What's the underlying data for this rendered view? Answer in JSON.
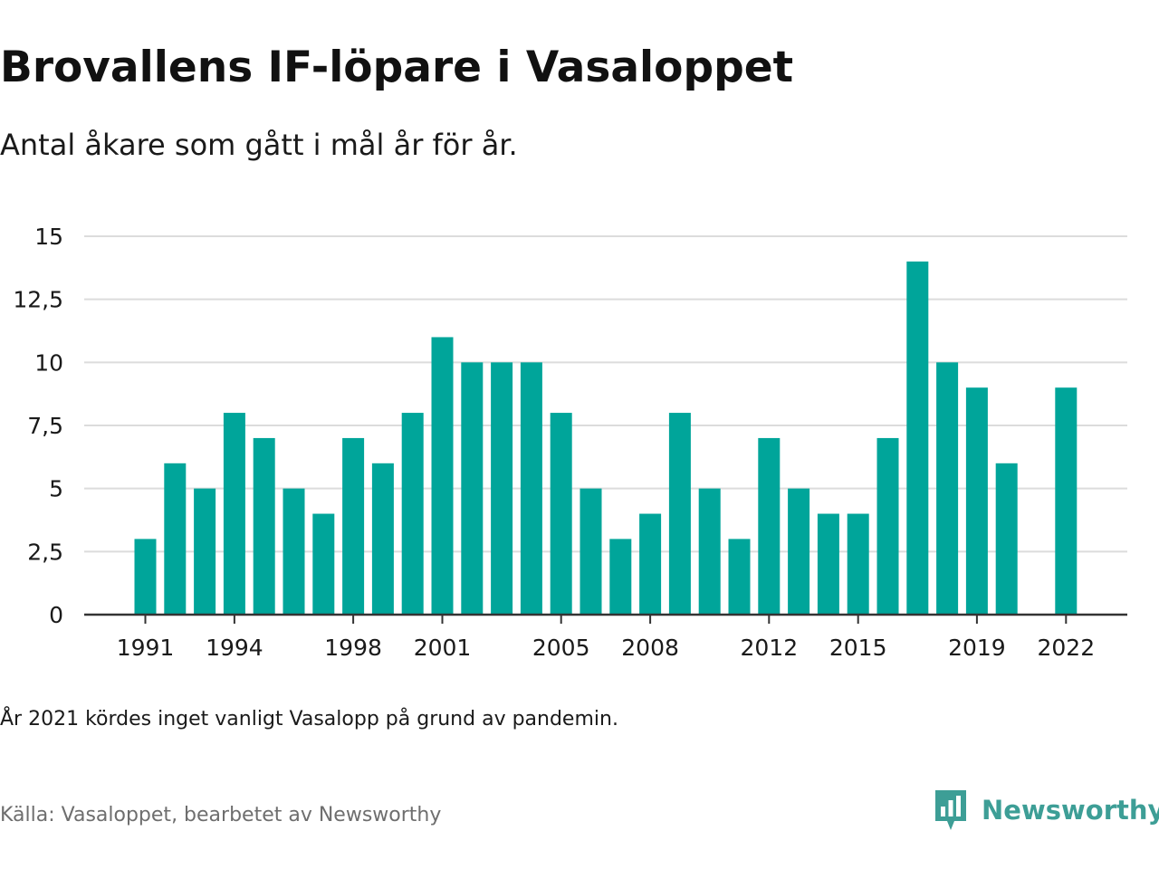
{
  "title": "Brovallens IF-löpare i Vasaloppet",
  "subtitle": "Antal åkare som gått i mål år för år.",
  "note": "År 2021 kördes inget vanligt Vasalopp på grund av pandemin.",
  "source": "Källa: Vasaloppet, bearbetet av Newsworthy",
  "brand": {
    "name": "Newsworthy",
    "color": "#3d9e96"
  },
  "colors": {
    "bar": "#00a59a",
    "grid": "#dcdcdc",
    "axis": "#333333",
    "text": "#1a1a1a"
  },
  "chart_data": {
    "type": "bar",
    "title": "Brovallens IF-löpare i Vasaloppet",
    "subtitle": "Antal åkare som gått i mål år för år.",
    "xlabel": "",
    "ylabel": "",
    "ylim": [
      0,
      15
    ],
    "grid": true,
    "y_ticks": [
      0,
      2.5,
      5,
      7.5,
      10,
      12.5,
      15
    ],
    "y_tick_labels": [
      "0",
      "2,5",
      "5",
      "7,5",
      "10",
      "12,5",
      "15"
    ],
    "x_tick_labels": [
      "1991",
      "1994",
      "1998",
      "2001",
      "2005",
      "2008",
      "2012",
      "2015",
      "2019",
      "2022"
    ],
    "categories": [
      1991,
      1992,
      1993,
      1994,
      1995,
      1996,
      1997,
      1998,
      1999,
      2000,
      2001,
      2002,
      2003,
      2004,
      2005,
      2006,
      2007,
      2008,
      2009,
      2010,
      2011,
      2012,
      2013,
      2014,
      2015,
      2016,
      2017,
      2018,
      2019,
      2020,
      2021,
      2022
    ],
    "values": [
      3,
      6,
      5,
      8,
      7,
      5,
      4,
      7,
      6,
      8,
      11,
      10,
      10,
      10,
      8,
      5,
      3,
      4,
      8,
      5,
      3,
      7,
      5,
      4,
      4,
      7,
      14,
      10,
      9,
      6,
      null,
      9
    ]
  }
}
